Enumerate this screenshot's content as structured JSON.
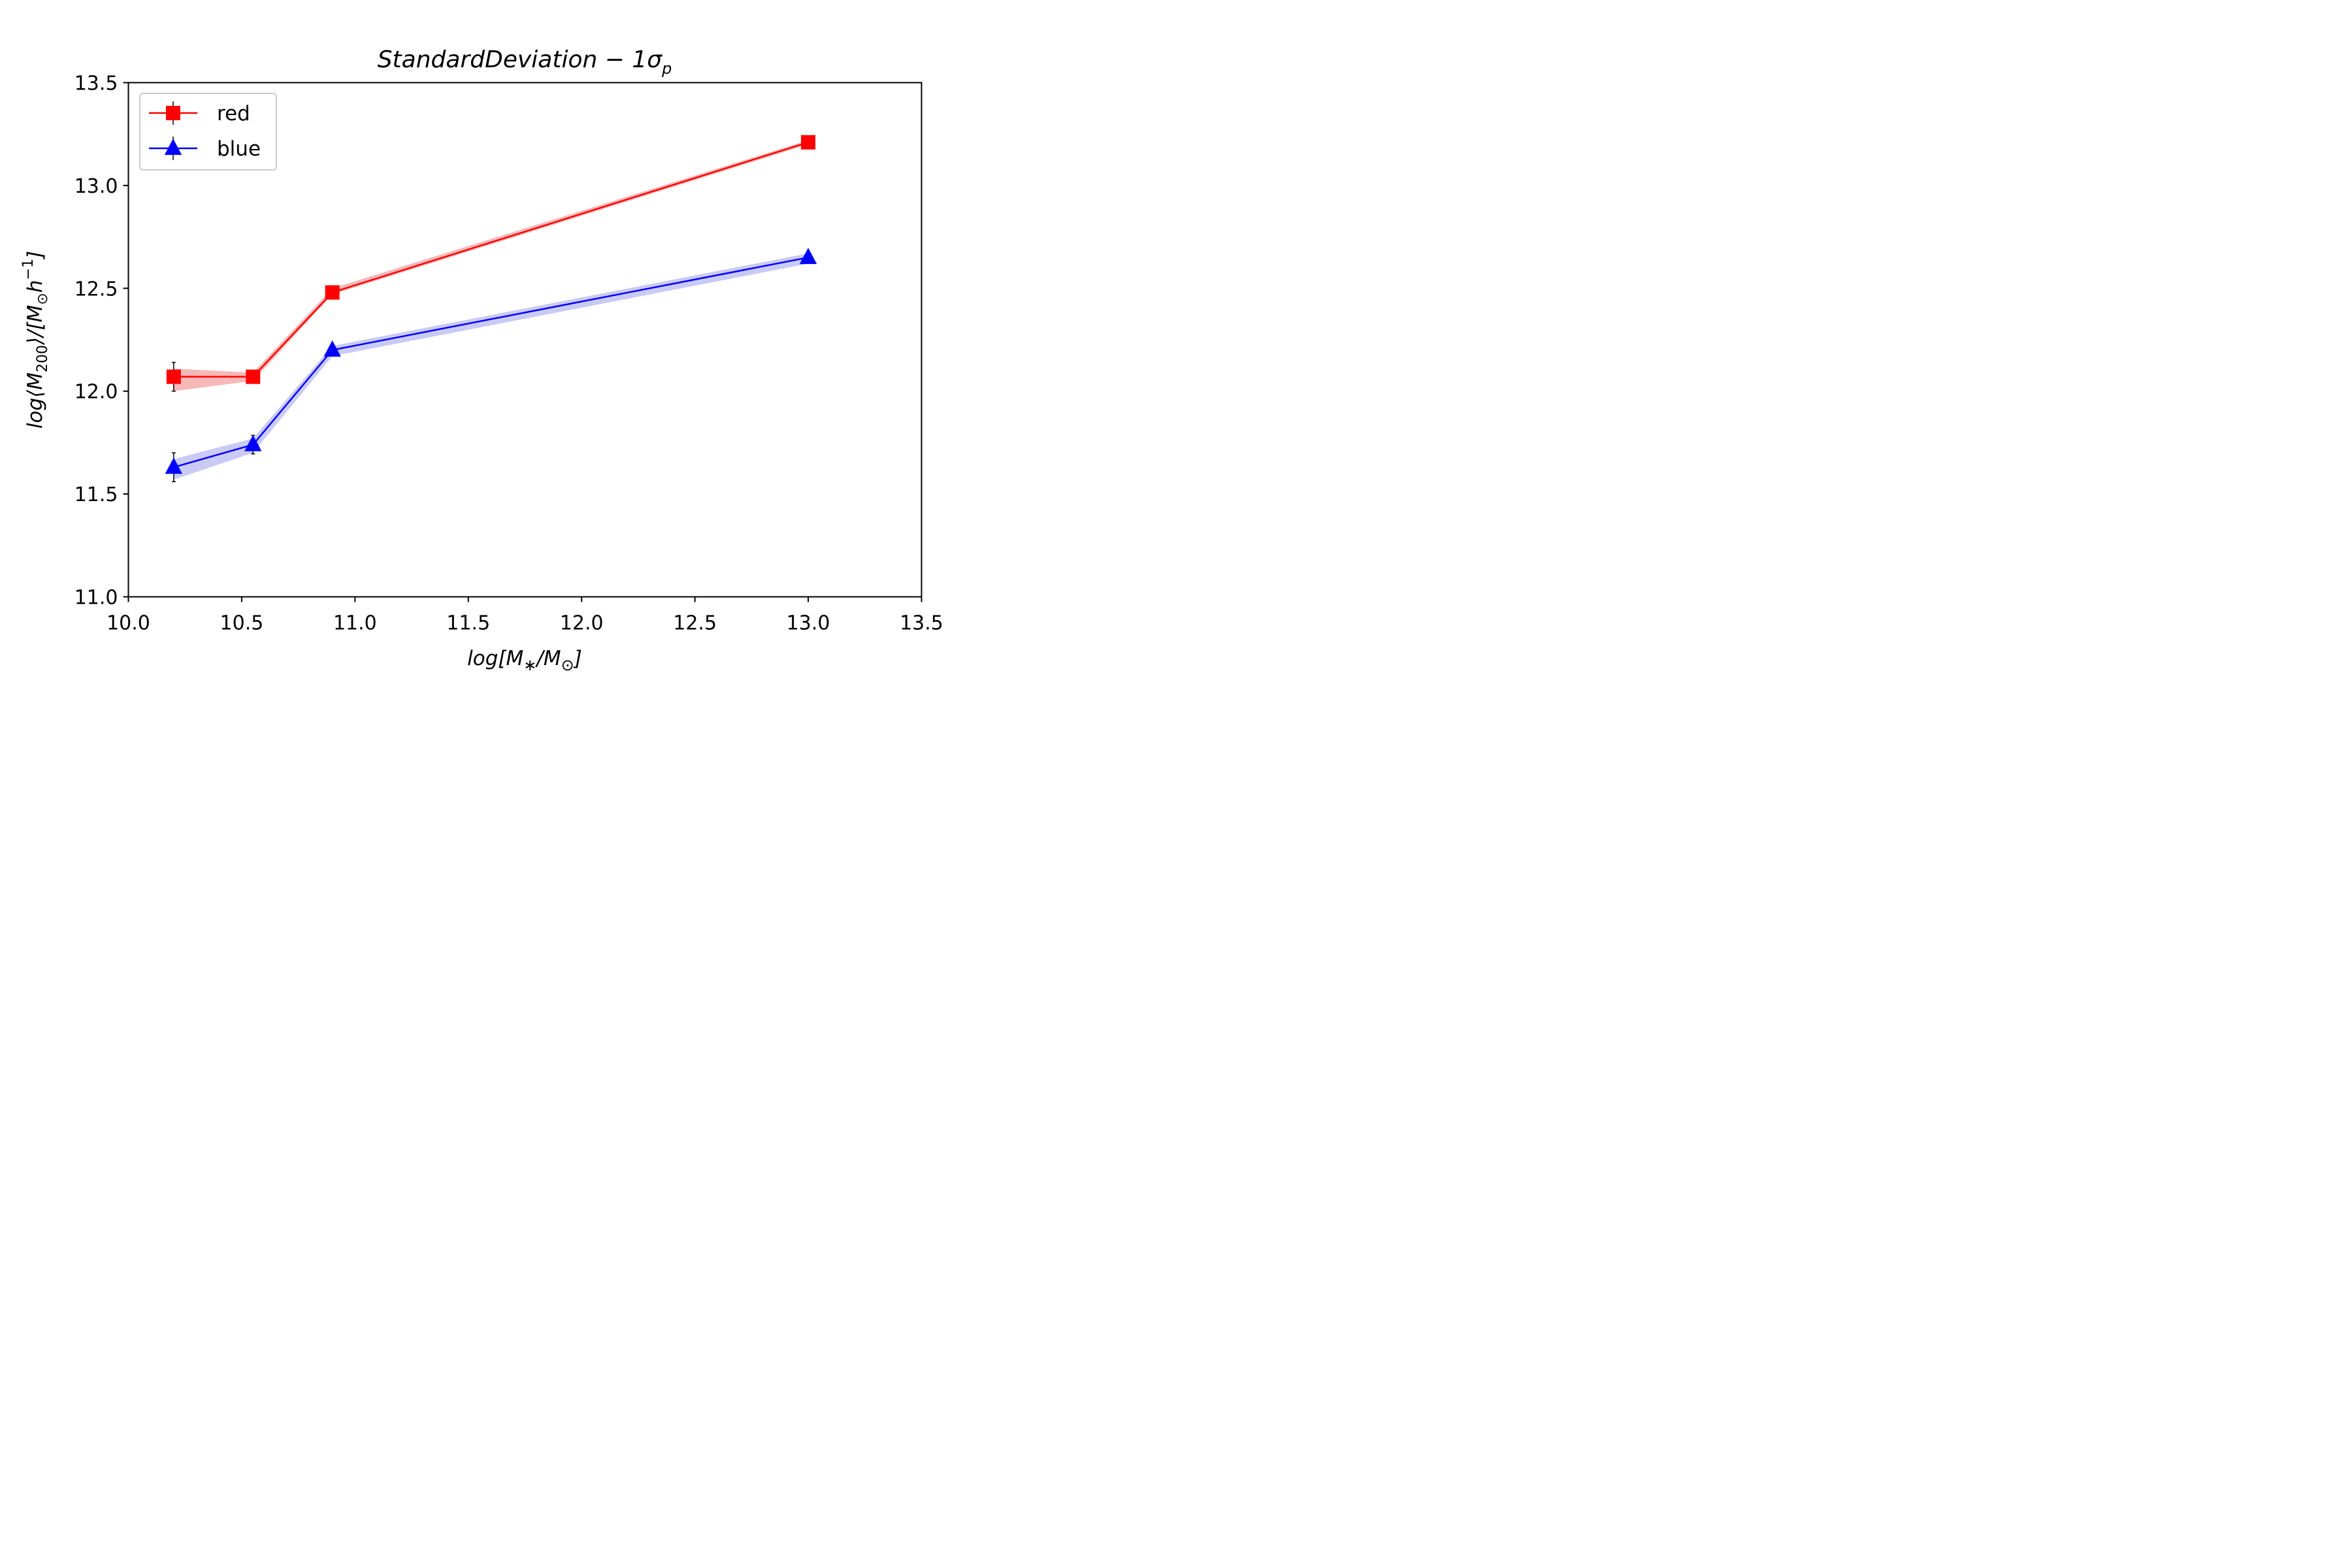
{
  "chart_data": {
    "type": "line",
    "title": {
      "main": "StandardDeviation − 1σ",
      "sub": "p"
    },
    "xlabel": {
      "pre": "log[M",
      "sub1": "∗",
      "mid": "/M",
      "sub2": "⊙",
      "post": "]"
    },
    "ylabel": {
      "pre": "log⟨M",
      "sub1": "200",
      "mid": "⟩/[M",
      "sub2": "⊙",
      "mid2": "h",
      "sup": "−1",
      "post": "]"
    },
    "xlim": [
      10.0,
      13.5
    ],
    "ylim": [
      11.0,
      13.5
    ],
    "xticks": [
      "10.0",
      "10.5",
      "11.0",
      "11.5",
      "12.0",
      "12.5",
      "13.0",
      "13.5"
    ],
    "yticks": [
      "11.0",
      "11.5",
      "12.0",
      "12.5",
      "13.0",
      "13.5"
    ],
    "grid": false,
    "legend_position": "top-left",
    "series": [
      {
        "name": "red",
        "color": "#ff0000",
        "band_color": "#f4a0a0",
        "marker": "square",
        "x": [
          10.2,
          10.55,
          10.9,
          13.0
        ],
        "y": [
          12.07,
          12.07,
          12.48,
          13.21
        ],
        "band_low": [
          12.0,
          12.05,
          12.47,
          13.2
        ],
        "band_high": [
          12.11,
          12.09,
          12.5,
          13.22
        ],
        "err": [
          0.07,
          0.02,
          0.01,
          0.01
        ]
      },
      {
        "name": "blue",
        "color": "#0000ff",
        "band_color": "#b8b8f4",
        "marker": "triangle",
        "x": [
          10.2,
          10.55,
          10.9,
          13.0
        ],
        "y": [
          11.63,
          11.74,
          12.2,
          12.65
        ],
        "band_low": [
          11.57,
          11.7,
          12.17,
          12.62
        ],
        "band_high": [
          11.67,
          11.77,
          12.22,
          12.67
        ],
        "err": [
          0.07,
          0.045,
          0.01,
          0.01
        ]
      }
    ]
  }
}
